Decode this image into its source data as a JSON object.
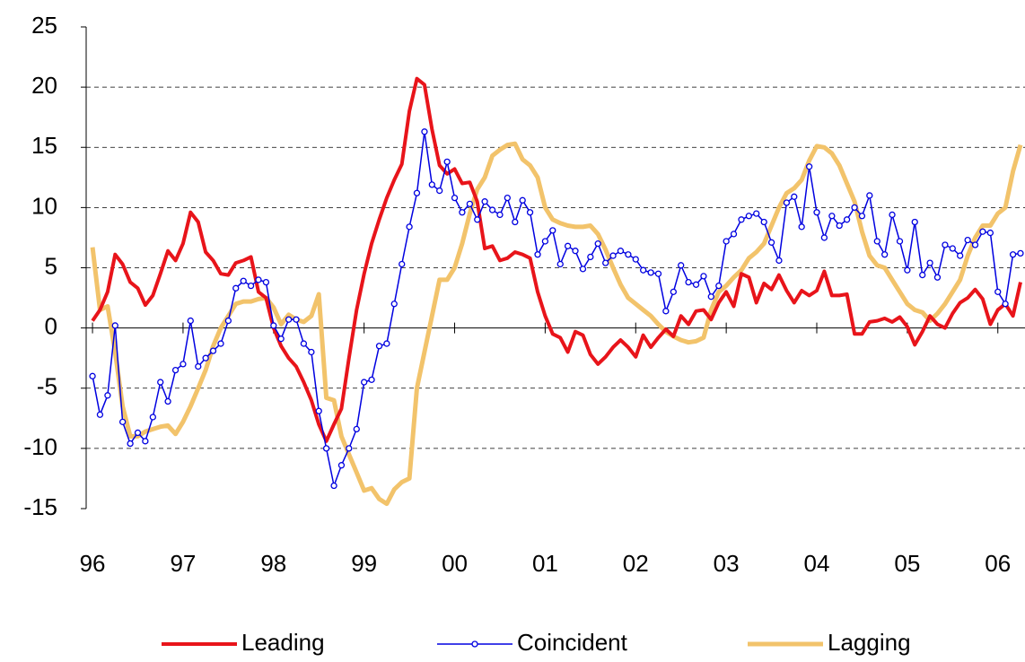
{
  "chart_data": {
    "type": "line",
    "x": [
      1996,
      1996.083,
      1996.167,
      1996.25,
      1996.333,
      1996.417,
      1996.5,
      1996.583,
      1996.667,
      1996.75,
      1996.833,
      1996.917,
      1997,
      1997.083,
      1997.167,
      1997.25,
      1997.333,
      1997.417,
      1997.5,
      1997.583,
      1997.667,
      1997.75,
      1997.833,
      1997.917,
      1998,
      1998.083,
      1998.167,
      1998.25,
      1998.333,
      1998.417,
      1998.5,
      1998.583,
      1998.667,
      1998.75,
      1998.833,
      1998.917,
      1999,
      1999.083,
      1999.167,
      1999.25,
      1999.333,
      1999.417,
      1999.5,
      1999.583,
      1999.667,
      1999.75,
      1999.833,
      1999.917,
      2000,
      2000.083,
      2000.167,
      2000.25,
      2000.333,
      2000.417,
      2000.5,
      2000.583,
      2000.667,
      2000.75,
      2000.833,
      2000.917,
      2001,
      2001.083,
      2001.167,
      2001.25,
      2001.333,
      2001.417,
      2001.5,
      2001.583,
      2001.667,
      2001.75,
      2001.833,
      2001.917,
      2002,
      2002.083,
      2002.167,
      2002.25,
      2002.333,
      2002.417,
      2002.5,
      2002.583,
      2002.667,
      2002.75,
      2002.833,
      2002.917,
      2003,
      2003.083,
      2003.167,
      2003.25,
      2003.333,
      2003.417,
      2003.5,
      2003.583,
      2003.667,
      2003.75,
      2003.833,
      2003.917,
      2004,
      2004.083,
      2004.167,
      2004.25,
      2004.333,
      2004.417,
      2004.5,
      2004.583,
      2004.667,
      2004.75,
      2004.833,
      2004.917,
      2005,
      2005.083,
      2005.167,
      2005.25,
      2005.333,
      2005.417,
      2005.5,
      2005.583,
      2005.667,
      2005.75,
      2005.833,
      2005.917,
      2006,
      2006.083,
      2006.167,
      2006.25
    ],
    "series": [
      {
        "name": "Leading",
        "color": "#e8141a",
        "values": [
          0.6,
          1.5,
          3,
          6.1,
          5.3,
          3.8,
          3.3,
          1.9,
          2.7,
          4.5,
          6.4,
          5.6,
          7,
          9.6,
          8.8,
          6.3,
          5.6,
          4.5,
          4.4,
          5.4,
          5.6,
          5.9,
          3,
          2.5,
          0,
          -1.5,
          -2.5,
          -3.2,
          -4.5,
          -6,
          -8,
          -9.4,
          -8,
          -6.7,
          -2.5,
          1.5,
          4.5,
          7,
          9,
          10.8,
          12.3,
          13.6,
          18,
          20.7,
          20.2,
          16.5,
          13.5,
          12.8,
          13.2,
          12,
          12.1,
          10.5,
          6.6,
          6.8,
          5.6,
          5.8,
          6.3,
          6.1,
          5.8,
          3,
          1,
          -0.5,
          -0.8,
          -2,
          -0.3,
          -0.6,
          -2.2,
          -3,
          -2.4,
          -1.6,
          -1,
          -1.6,
          -2.4,
          -0.6,
          -1.6,
          -0.8,
          -0.1,
          -0.7,
          1,
          0.3,
          1.4,
          1.5,
          0.7,
          2.1,
          3,
          1.8,
          4.5,
          4.2,
          2.1,
          3.7,
          3.2,
          4.4,
          3.1,
          2.1,
          3.1,
          2.7,
          3.1,
          4.7,
          2.7,
          2.7,
          2.8,
          -0.5,
          -0.5,
          0.5,
          0.6,
          0.8,
          0.5,
          0.9,
          0.1,
          -1.4,
          -0.3,
          1,
          0.3,
          0,
          1.2,
          2.1,
          2.5,
          3.2,
          2.4,
          0.3,
          1.5,
          2,
          1,
          3.8
        ]
      },
      {
        "name": "Coincident",
        "color": "#0000e0",
        "values": [
          -4,
          -7.2,
          -5.6,
          0.2,
          -7.8,
          -9.6,
          -8.7,
          -9.4,
          -7.4,
          -4.5,
          -6.1,
          -3.5,
          -3,
          0.6,
          -3.2,
          -2.5,
          -1.9,
          -1.3,
          0.6,
          3.3,
          3.9,
          3.5,
          4,
          3.8,
          0.2,
          -0.9,
          0.7,
          0.7,
          -1.3,
          -2,
          -6.9,
          -10,
          -13.1,
          -11.4,
          -10,
          -8.4,
          -4.5,
          -4.3,
          -1.5,
          -1.3,
          2,
          5.3,
          8.4,
          11.2,
          16.3,
          11.9,
          11.4,
          13.8,
          10.8,
          9.6,
          10.3,
          9,
          10.5,
          9.8,
          9.4,
          10.8,
          8.8,
          10.6,
          9.6,
          6.1,
          7.2,
          8.1,
          5.3,
          6.8,
          6.4,
          4.9,
          5.9,
          7,
          5.4,
          6,
          6.4,
          6.1,
          5.7,
          4.8,
          4.6,
          4.5,
          1.4,
          3,
          5.2,
          3.8,
          3.6,
          4.3,
          2.6,
          3.5,
          7.2,
          7.8,
          9,
          9.3,
          9.5,
          8.8,
          7.1,
          5.6,
          10.4,
          10.9,
          8.4,
          13.4,
          9.6,
          7.5,
          9.3,
          8.5,
          9,
          10,
          9.3,
          11,
          7.2,
          6.1,
          9.4,
          7.2,
          4.8,
          8.8,
          4.4,
          5.4,
          4.2,
          6.9,
          6.6,
          6,
          7.3,
          6.9,
          8,
          7.9,
          3,
          2,
          6.1,
          6.2
        ]
      },
      {
        "name": "Lagging",
        "color": "#f2c36b",
        "values": [
          6.7,
          1.5,
          1.8,
          -2,
          -6.5,
          -9,
          -9,
          -8.6,
          -8.4,
          -8.2,
          -8.1,
          -8.8,
          -7.8,
          -6.5,
          -5,
          -3.5,
          -1.5,
          0,
          1,
          2,
          2.2,
          2.2,
          2.4,
          2.5,
          1.7,
          0.3,
          1.1,
          0.7,
          0.5,
          1,
          2.8,
          -5.8,
          -6,
          -9,
          -10.5,
          -12,
          -13.5,
          -13.3,
          -14.2,
          -14.6,
          -13.4,
          -12.8,
          -12.5,
          -5,
          -2,
          1,
          4,
          4,
          5,
          7,
          9.5,
          11.5,
          12.5,
          14.3,
          14.8,
          15.2,
          15.3,
          14,
          13.5,
          12.5,
          10,
          9,
          8.7,
          8.5,
          8.4,
          8.4,
          8.5,
          7.8,
          6.5,
          5,
          3.6,
          2.5,
          2,
          1.5,
          1,
          0.3,
          -0.3,
          -0.7,
          -1,
          -1.2,
          -1.1,
          -0.8,
          1.5,
          3,
          3.5,
          4.2,
          4.8,
          5.8,
          6.3,
          7,
          8.5,
          10,
          11.2,
          11.6,
          12.3,
          13.9,
          15.1,
          15,
          14.5,
          13.5,
          12,
          10.5,
          8,
          6,
          5.2,
          5,
          4,
          3,
          2,
          1.5,
          1.3,
          0.6,
          1.2,
          2,
          3,
          4,
          6,
          7.5,
          8.5,
          8.5,
          9.5,
          10,
          13,
          15.2
        ]
      }
    ],
    "xlim": [
      1995.93,
      2006.3
    ],
    "xticks": [
      {
        "value": 1996,
        "label": "96"
      },
      {
        "value": 1997,
        "label": "97"
      },
      {
        "value": 1998,
        "label": "98"
      },
      {
        "value": 1999,
        "label": "99"
      },
      {
        "value": 2000,
        "label": "00"
      },
      {
        "value": 2001,
        "label": "01"
      },
      {
        "value": 2002,
        "label": "02"
      },
      {
        "value": 2003,
        "label": "03"
      },
      {
        "value": 2004,
        "label": "04"
      },
      {
        "value": 2005,
        "label": "05"
      },
      {
        "value": 2006,
        "label": "06"
      }
    ],
    "ylim": [
      -15,
      25
    ],
    "yticks": [
      -15,
      -10,
      -5,
      0,
      5,
      10,
      15,
      20,
      25
    ],
    "grid": true,
    "legend": "bottom"
  }
}
